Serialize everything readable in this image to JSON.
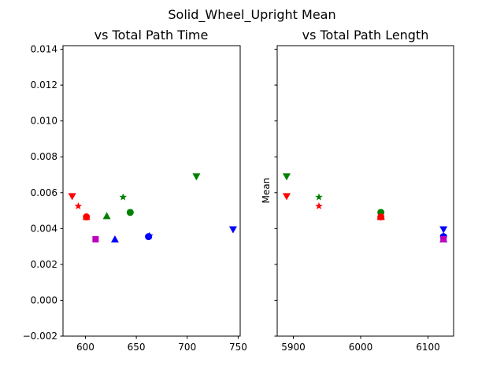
{
  "figure_title": "Solid_Wheel_Upright Mean",
  "colors": {
    "red": "#ff0000",
    "green": "#008000",
    "blue": "#0000ff",
    "magenta": "#bf00bf"
  },
  "chart_data": [
    {
      "type": "scatter",
      "title": "vs Total Path Time",
      "xlabel": "",
      "ylabel": "",
      "xlim": [
        578,
        752
      ],
      "ylim": [
        -0.002,
        0.0142
      ],
      "xticks": [
        "600",
        "650",
        "700",
        "750"
      ],
      "yticks": [
        "−0.002",
        "0.000",
        "0.002",
        "0.004",
        "0.006",
        "0.008",
        "0.010",
        "0.012",
        "0.014"
      ],
      "points": [
        {
          "x": 587,
          "y": 0.0058,
          "marker": "triangle-down",
          "color": "red"
        },
        {
          "x": 593,
          "y": 0.00525,
          "marker": "star",
          "color": "red"
        },
        {
          "x": 601,
          "y": 0.00465,
          "marker": "circle",
          "color": "red"
        },
        {
          "x": 601,
          "y": 0.00465,
          "marker": "triangle-up",
          "color": "red"
        },
        {
          "x": 610,
          "y": 0.0034,
          "marker": "square",
          "color": "magenta"
        },
        {
          "x": 621,
          "y": 0.0047,
          "marker": "triangle-up",
          "color": "green"
        },
        {
          "x": 629,
          "y": 0.0034,
          "marker": "triangle-up",
          "color": "blue"
        },
        {
          "x": 637,
          "y": 0.00575,
          "marker": "star",
          "color": "green"
        },
        {
          "x": 644,
          "y": 0.0049,
          "marker": "circle",
          "color": "green"
        },
        {
          "x": 663,
          "y": 0.0036,
          "marker": "star",
          "color": "blue"
        },
        {
          "x": 662,
          "y": 0.00355,
          "marker": "circle",
          "color": "blue"
        },
        {
          "x": 709,
          "y": 0.0069,
          "marker": "triangle-down",
          "color": "green"
        },
        {
          "x": 745,
          "y": 0.00395,
          "marker": "triangle-down",
          "color": "blue"
        }
      ]
    },
    {
      "type": "scatter",
      "title": "vs Total Path Length",
      "xlabel": "",
      "ylabel": "Mean",
      "xlim": [
        5876,
        6138
      ],
      "ylim": [
        -0.002,
        0.0142
      ],
      "xticks": [
        "5900",
        "6000",
        "6100"
      ],
      "points": [
        {
          "x": 5890,
          "y": 0.0069,
          "marker": "triangle-down",
          "color": "green"
        },
        {
          "x": 5890,
          "y": 0.0058,
          "marker": "triangle-down",
          "color": "red"
        },
        {
          "x": 5938,
          "y": 0.00575,
          "marker": "star",
          "color": "green"
        },
        {
          "x": 5938,
          "y": 0.00525,
          "marker": "star",
          "color": "red"
        },
        {
          "x": 6030,
          "y": 0.0049,
          "marker": "circle",
          "color": "green"
        },
        {
          "x": 6030,
          "y": 0.0047,
          "marker": "triangle-up",
          "color": "green"
        },
        {
          "x": 6030,
          "y": 0.00465,
          "marker": "circle",
          "color": "red"
        },
        {
          "x": 6030,
          "y": 0.00465,
          "marker": "triangle-up",
          "color": "red"
        },
        {
          "x": 6123,
          "y": 0.00395,
          "marker": "triangle-down",
          "color": "blue"
        },
        {
          "x": 6123,
          "y": 0.0036,
          "marker": "star",
          "color": "blue"
        },
        {
          "x": 6123,
          "y": 0.00355,
          "marker": "circle",
          "color": "blue"
        },
        {
          "x": 6123,
          "y": 0.0034,
          "marker": "triangle-up",
          "color": "blue"
        },
        {
          "x": 6123,
          "y": 0.0034,
          "marker": "square",
          "color": "magenta"
        }
      ]
    }
  ]
}
